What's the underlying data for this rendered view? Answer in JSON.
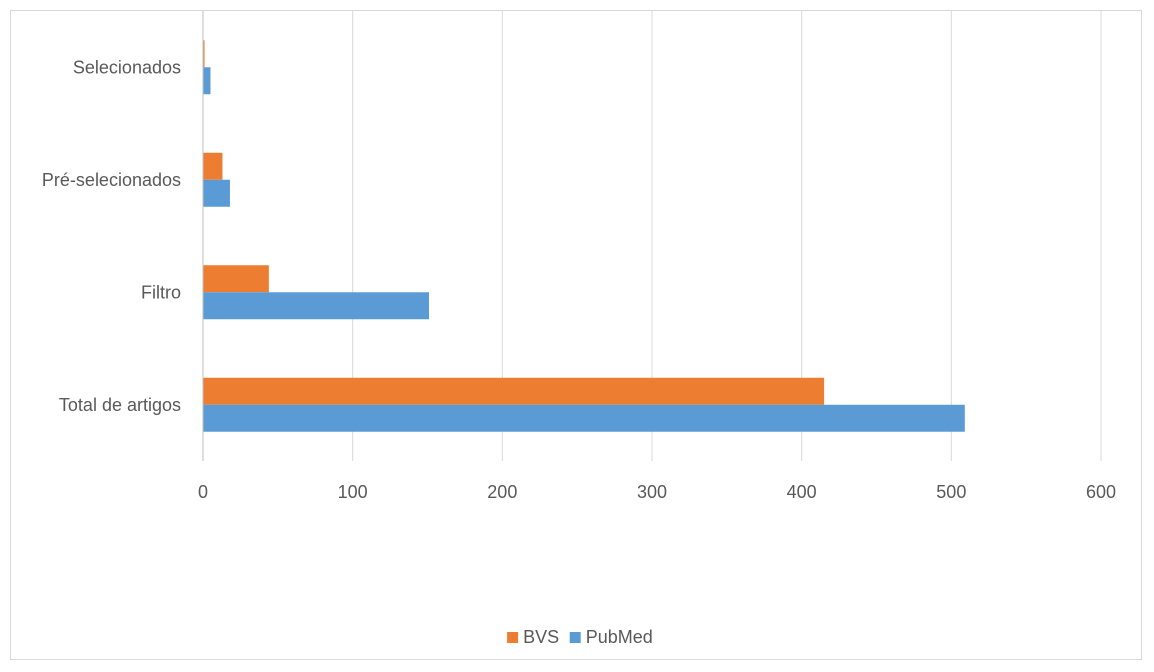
{
  "chart_data": {
    "type": "bar",
    "orientation": "horizontal",
    "title": "",
    "xlabel": "",
    "ylabel": "",
    "categories": [
      "Total de artigos",
      "Filtro",
      "Pré-selecionados",
      "Selecionados"
    ],
    "series": [
      {
        "name": "BVS",
        "color": "#ED7D31",
        "values": [
          415,
          44,
          13,
          1
        ]
      },
      {
        "name": "PubMed",
        "color": "#5B9BD5",
        "values": [
          509,
          151,
          18,
          5
        ]
      }
    ],
    "xlim": [
      0,
      600
    ],
    "x_ticks": [
      "0",
      "100",
      "200",
      "300",
      "400",
      "500",
      "600"
    ],
    "grid": "vertical",
    "legend_position": "bottom"
  }
}
